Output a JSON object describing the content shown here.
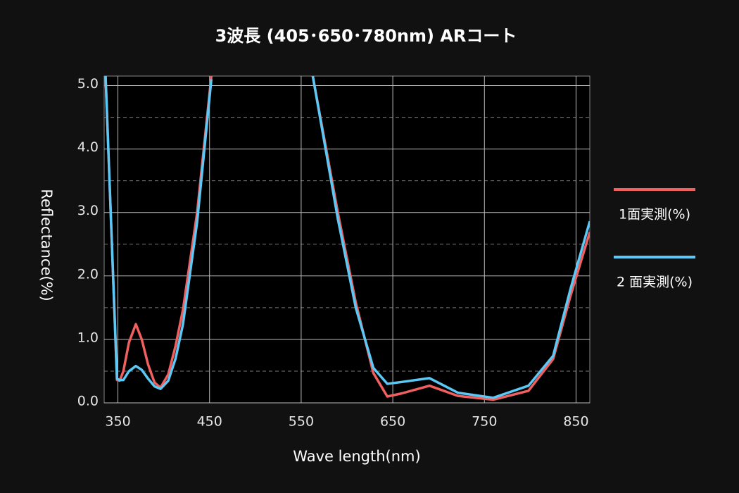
{
  "chart_data": {
    "type": "line",
    "title": "3波長 (405･650･780nm) ARコート",
    "x_label": "Wave length(nm)",
    "y_label": "Reflectance(%)",
    "xlim": [
      335,
      865
    ],
    "ylim": [
      0,
      5.15
    ],
    "xticks": [
      350,
      450,
      550,
      650,
      750,
      850
    ],
    "yticks": [
      {
        "value": 0,
        "label": "0.0"
      },
      {
        "value": 1,
        "label": "1.0"
      },
      {
        "value": 2,
        "label": "2.0"
      },
      {
        "value": 3,
        "label": "3.0"
      },
      {
        "value": 4,
        "label": "4.0"
      },
      {
        "value": 5,
        "label": "5.0"
      }
    ],
    "yminorticks": [
      0.5,
      1.5,
      2.5,
      3.5,
      4.5
    ],
    "grid": true,
    "legend": "right",
    "x": [
      336.5,
      349,
      352,
      356,
      362,
      369.6,
      376,
      383,
      390,
      396.5,
      405,
      413,
      421,
      436.5,
      452,
      500,
      562.7,
      590,
      609.6,
      628.8,
      644,
      660,
      690,
      721,
      759.6,
      798,
      825,
      844,
      865
    ],
    "series": [
      {
        "name": "1面実測(%)",
        "color": "#f0605f",
        "values": [
          5.15,
          0.36,
          0.35,
          0.5,
          0.95,
          1.24,
          1.0,
          0.6,
          0.32,
          0.24,
          0.45,
          0.9,
          1.47,
          3.0,
          5.15,
          null,
          5.15,
          3.0,
          1.58,
          0.47,
          0.1,
          0.15,
          0.27,
          0.11,
          0.05,
          0.19,
          0.69,
          1.69,
          2.69
        ]
      },
      {
        "name": "2 面実測(%)",
        "color": "#5bc8f5",
        "values": [
          5.15,
          0.38,
          0.36,
          0.36,
          0.5,
          0.58,
          0.52,
          0.38,
          0.26,
          0.22,
          0.35,
          0.7,
          1.24,
          2.85,
          5.1,
          null,
          5.15,
          2.9,
          1.5,
          0.55,
          0.3,
          0.33,
          0.39,
          0.16,
          0.08,
          0.27,
          0.74,
          1.8,
          2.86
        ]
      }
    ]
  }
}
